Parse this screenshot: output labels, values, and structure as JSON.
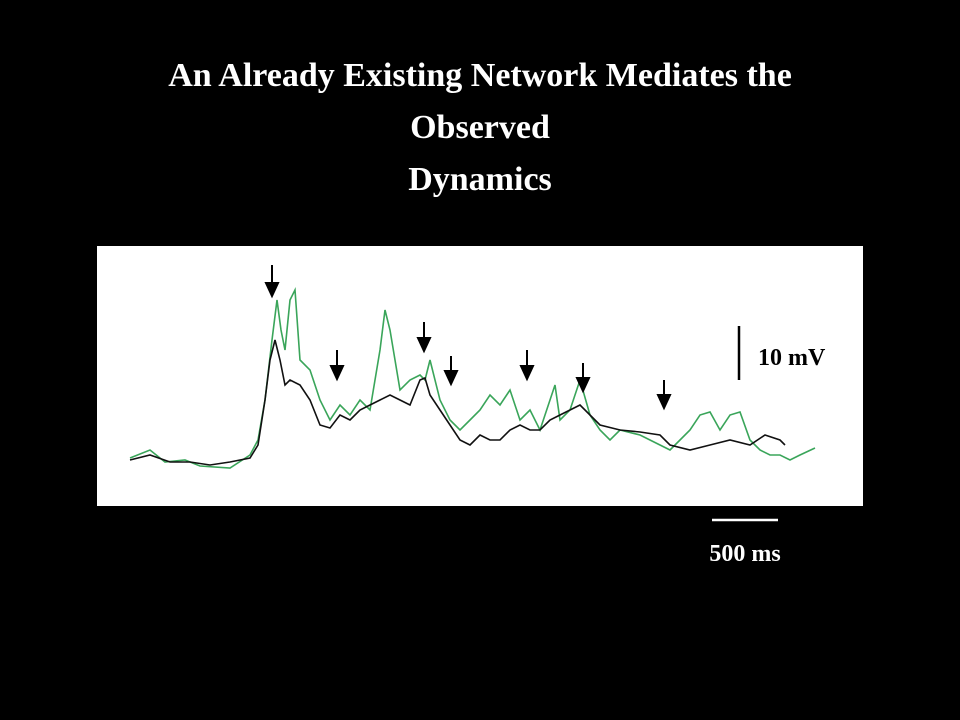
{
  "slide": {
    "title_lines": [
      "An Already Existing Network Mediates the",
      "Observed",
      "Dynamics"
    ],
    "figure": {
      "voltage_scale_label": "10 mV",
      "time_scale_label": "500 ms"
    }
  }
}
